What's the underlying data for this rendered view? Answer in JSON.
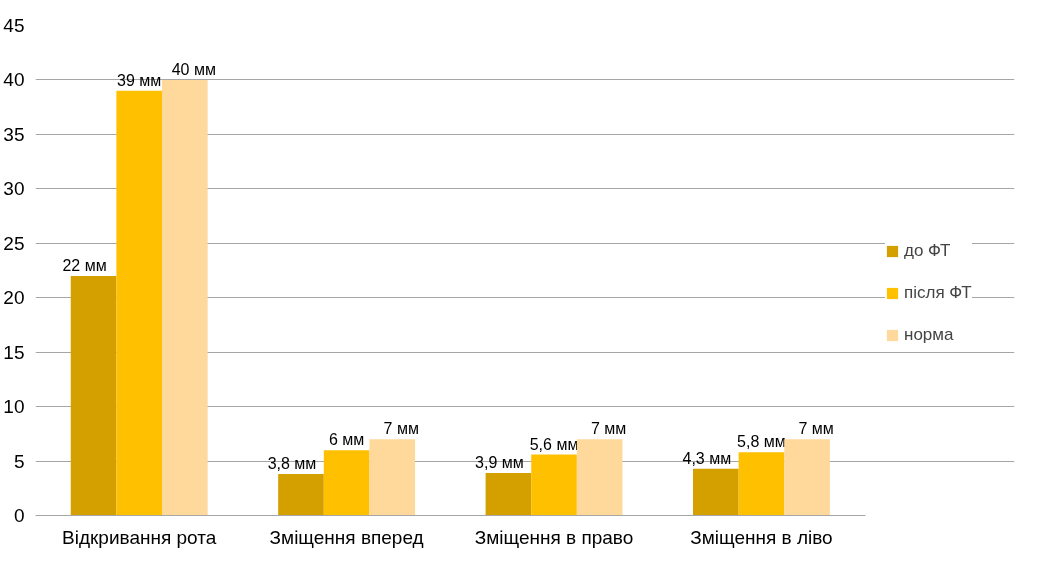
{
  "chart_data": {
    "type": "bar",
    "categories": [
      "Відкривання рота",
      "Зміщення вперед",
      "Зміщення в право",
      "Зміщення в ліво"
    ],
    "series": [
      {
        "name": "до ФТ",
        "color": "#d4a000",
        "values": [
          22,
          3.8,
          3.9,
          4.3
        ],
        "value_labels": [
          "22 мм",
          "3,8 мм",
          "3,9 мм",
          "4,3 мм"
        ]
      },
      {
        "name": "після ФТ",
        "color": "#ffc000",
        "values": [
          39,
          6,
          5.6,
          5.8
        ],
        "value_labels": [
          "39 мм",
          "6 мм",
          "5,6 мм",
          "5,8 мм"
        ]
      },
      {
        "name": "норма",
        "color": "#ffd89b",
        "values": [
          40,
          7,
          7,
          7
        ],
        "value_labels": [
          "40 мм",
          "7 мм",
          "7 мм",
          "7 мм"
        ]
      }
    ],
    "ylim": [
      0,
      45
    ],
    "yticks": [
      0,
      5,
      10,
      15,
      20,
      25,
      30,
      35,
      40,
      45
    ],
    "grid": "y",
    "legend": "right"
  }
}
